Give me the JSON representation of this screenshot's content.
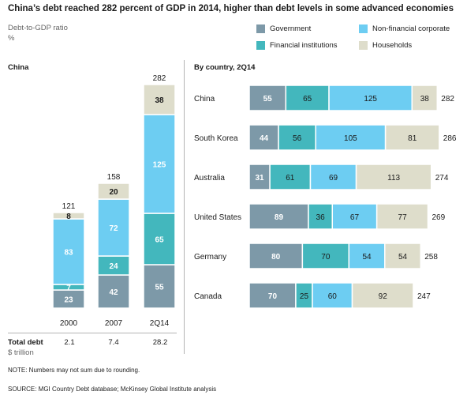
{
  "title": "China’s debt reached 282 percent of GDP in 2014, higher than debt levels in some advanced economies",
  "subtitle": "Debt-to-GDP ratio",
  "unit": "%",
  "colors": {
    "Government": "#7d99a8",
    "Financial institutions": "#43b7bd",
    "Non-financial corporate": "#6dcdf2",
    "Households": "#deddcb"
  },
  "legend": [
    {
      "name": "Government",
      "color": "#7d99a8"
    },
    {
      "name": "Non-financial corporate",
      "color": "#6dcdf2"
    },
    {
      "name": "Financial institutions",
      "color": "#43b7bd"
    },
    {
      "name": "Households",
      "color": "#deddcb"
    }
  ],
  "china_panel": {
    "label": "China",
    "total_label": "Total debt",
    "total_unit": "$ trillion",
    "total_debt": [
      "2.1",
      "7.4",
      "28.2"
    ]
  },
  "country_panel": {
    "label": "By country, 2Q14"
  },
  "chart_data": [
    {
      "type": "bar",
      "stacked": true,
      "orientation": "vertical",
      "categories": [
        "2000",
        "2007",
        "2Q14"
      ],
      "series": [
        {
          "name": "Government",
          "values": [
            23,
            42,
            55
          ]
        },
        {
          "name": "Financial institutions",
          "values": [
            7,
            24,
            65
          ]
        },
        {
          "name": "Non-financial corporate",
          "values": [
            83,
            72,
            125
          ]
        },
        {
          "name": "Households",
          "values": [
            8,
            20,
            38
          ]
        }
      ],
      "totals": [
        121,
        158,
        282
      ]
    },
    {
      "type": "bar",
      "stacked": true,
      "orientation": "horizontal",
      "categories": [
        "China",
        "South Korea",
        "Australia",
        "United States",
        "Germany",
        "Canada"
      ],
      "series": [
        {
          "name": "Government",
          "values": [
            55,
            44,
            31,
            89,
            80,
            70
          ]
        },
        {
          "name": "Financial institutions",
          "values": [
            65,
            56,
            61,
            36,
            70,
            25
          ]
        },
        {
          "name": "Non-financial corporate",
          "values": [
            125,
            105,
            69,
            67,
            54,
            60
          ]
        },
        {
          "name": "Households",
          "values": [
            38,
            81,
            113,
            77,
            54,
            92
          ]
        }
      ],
      "totals": [
        282,
        286,
        274,
        269,
        258,
        247
      ]
    }
  ],
  "note": "NOTE: Numbers may not sum due to rounding.",
  "source": "SOURCE:  MGI Country Debt database; McKinsey Global Institute analysis"
}
